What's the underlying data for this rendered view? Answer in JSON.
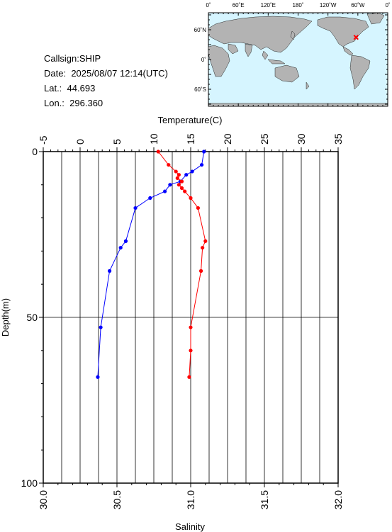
{
  "station": {
    "callsign_label": "Callsign:",
    "callsign": "SHIP",
    "date_label": "Date:",
    "date": "2025/08/07 12:14(UTC)",
    "lat_label": "Lat.:",
    "lat": "44.693",
    "lon_label": "Lon.:",
    "lon": "296.360"
  },
  "map": {
    "top_labels": [
      "0˚",
      "60˚E",
      "120˚E",
      "180˚",
      "120˚W",
      "60˚W",
      "0˚"
    ],
    "left_labels": [
      "60˚N",
      "0˚",
      "60˚S"
    ],
    "ocean_color": "#d6f5ff",
    "land_color": "#b3b3b3",
    "marker_color": "#ff0000"
  },
  "chart_data": {
    "type": "line",
    "top_axis": {
      "label": "Temperature(C)",
      "range": [
        -5,
        35
      ],
      "ticks": [
        "-5",
        "0",
        "5",
        "10",
        "15",
        "20",
        "25",
        "30",
        "35"
      ]
    },
    "bottom_axis": {
      "label": "Salinity",
      "range": [
        30.0,
        32.0
      ],
      "ticks": [
        "30.0",
        "30.5",
        "31.0",
        "31.5",
        "32.0"
      ]
    },
    "left_axis": {
      "label": "Depth(m)",
      "range": [
        0,
        100
      ],
      "inverted": true,
      "ticks": [
        "0",
        "50",
        "100"
      ]
    },
    "grid": true,
    "series": [
      {
        "color": "#0000ff",
        "axis": "temperature",
        "points": [
          [
            16.8,
            0
          ],
          [
            16.5,
            4
          ],
          [
            15.2,
            6
          ],
          [
            14.4,
            7
          ],
          [
            13.6,
            9
          ],
          [
            12.2,
            10
          ],
          [
            11.5,
            12
          ],
          [
            9.5,
            14
          ],
          [
            7.5,
            17
          ],
          [
            6.2,
            27
          ],
          [
            5.5,
            29
          ],
          [
            4.0,
            36
          ],
          [
            2.8,
            53
          ],
          [
            2.4,
            68
          ]
        ]
      },
      {
        "color": "#ff0000",
        "axis": "salinity",
        "points": [
          [
            30.78,
            0
          ],
          [
            30.85,
            4
          ],
          [
            30.9,
            6
          ],
          [
            30.92,
            7
          ],
          [
            30.91,
            8
          ],
          [
            30.94,
            9
          ],
          [
            30.92,
            10
          ],
          [
            30.94,
            11
          ],
          [
            30.96,
            12
          ],
          [
            31.0,
            14
          ],
          [
            31.05,
            17
          ],
          [
            31.1,
            27
          ],
          [
            31.08,
            29
          ],
          [
            31.07,
            36
          ],
          [
            31.0,
            53
          ],
          [
            31.0,
            60
          ],
          [
            30.99,
            68
          ]
        ]
      }
    ]
  }
}
